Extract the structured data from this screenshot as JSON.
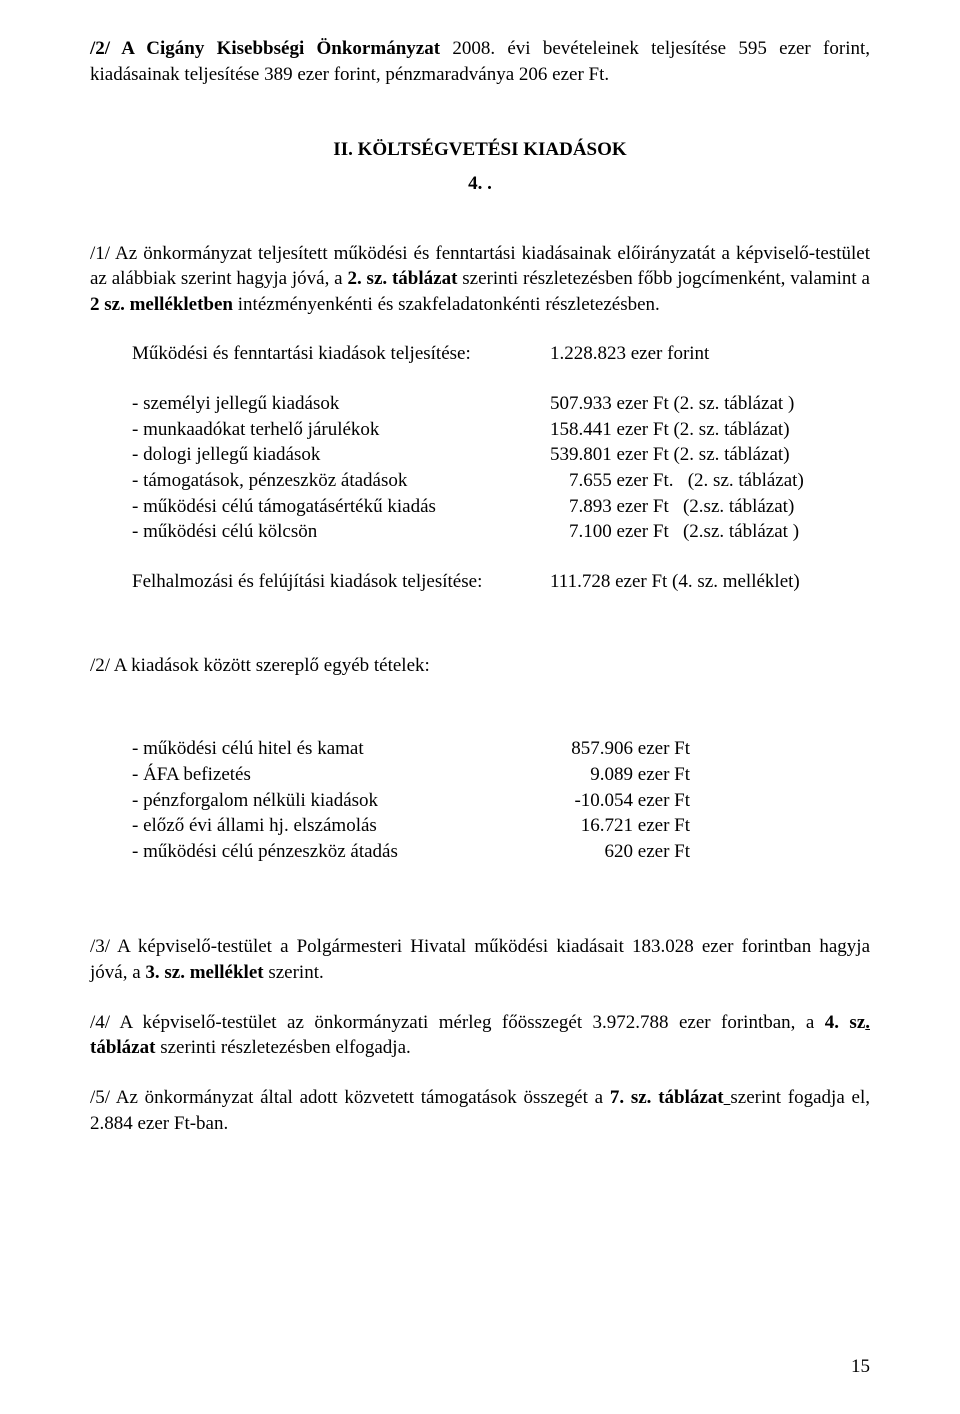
{
  "p1": {
    "text": "/2/ A Cigány Kisebbségi Önkormányzat 2008. évi bevételeinek teljesítése 595 ezer forint, kiadásainak teljesítése 389 ezer forint, pénzmaradványa 206 ezer Ft.",
    "bold_prefix": "/2/ A Cigány Kisebbségi Önkormányzat",
    "rest": " 2008. évi bevételeinek teljesítése 595 ezer forint, kiadásainak teljesítése 389 ezer forint, pénzmaradványa 206 ezer Ft."
  },
  "section2": {
    "title": "II. KÖLTSÉGVETÉSI KIADÁSOK",
    "para_num": "4. ."
  },
  "p2": {
    "part1": "/1/ Az önkormányzat teljesített működési és fenntartási kiadásainak előirányzatát a képviselő-testület az alábbiak szerint hagyja jóvá, a ",
    "bold1": "2. sz. táblázat",
    "part2": " szerinti részletezésben főbb jogcímenként, valamint a ",
    "bold2": "2 sz. mellékletben",
    "part3": " intézményenkénti és szakfeladatonkénti részletezésben."
  },
  "totals1": {
    "label": "Működési és fenntartási kiadások teljesítése:",
    "value": "1.228.823 ezer forint"
  },
  "items1": [
    {
      "l": "- személyi jellegű kiadások",
      "r": "507.933 ezer Ft   (2. sz. táblázat )"
    },
    {
      "l": "- munkaadókat terhelő járulékok",
      "r": "158.441 ezer Ft   (2. sz. táblázat)"
    },
    {
      "l": "- dologi jellegű kiadások",
      "r": "539.801 ezer Ft   (2. sz. táblázat)"
    },
    {
      "l": "- támogatások, pénzeszköz átadások",
      "r": "    7.655 ezer Ft.   (2. sz. táblázat)"
    },
    {
      "l": "- működési célú támogatásértékű kiadás",
      "r": "    7.893 ezer Ft   (2.sz. táblázat)"
    },
    {
      "l": "- működési célú kölcsön",
      "r": "    7.100 ezer Ft   (2.sz. táblázat )"
    }
  ],
  "totals2": {
    "label": "Felhalmozási és felújítási kiadások teljesítése:",
    "value": "111.728 ezer Ft   (4. sz. melléklet)"
  },
  "p3": "/2/ A kiadások között szereplő egyéb tételek:",
  "items2": [
    {
      "l": "- működési célú hitel és kamat",
      "r": "857.906 ezer Ft"
    },
    {
      "l": "- ÁFA befizetés",
      "r": "    9.089 ezer Ft"
    },
    {
      "l": "- pénzforgalom nélküli kiadások",
      "r": " -10.054 ezer Ft"
    },
    {
      "l": "- előző évi állami hj. elszámolás",
      "r": "  16.721 ezer Ft"
    },
    {
      "l": "- működési célú pénzeszköz átadás",
      "r": "       620 ezer Ft"
    }
  ],
  "p4": {
    "part1": "/3/ A képviselő-testület a Polgármesteri Hivatal működési kiadásait 183.028 ezer forintban hagyja jóvá, a ",
    "bold1": "3. sz. melléklet",
    "part2": " szerint."
  },
  "p5": {
    "part1": "/4/ A képviselő-testület az önkormányzati mérleg főösszegét 3.972.788 ezer forintban, a ",
    "bold1": "4. sz",
    "underline1": ".",
    "bold2": " táblázat",
    "part2": " szerinti részletezésben elfogadja."
  },
  "p6": {
    "part1": "/5/ Az önkormányzat által adott közvetett támogatások összegét a ",
    "bold1": "7. sz. táblázat",
    "underline1": " ",
    "part2": "szerint fogadja el, 2.884 ezer Ft-ban."
  },
  "page_number": "15"
}
